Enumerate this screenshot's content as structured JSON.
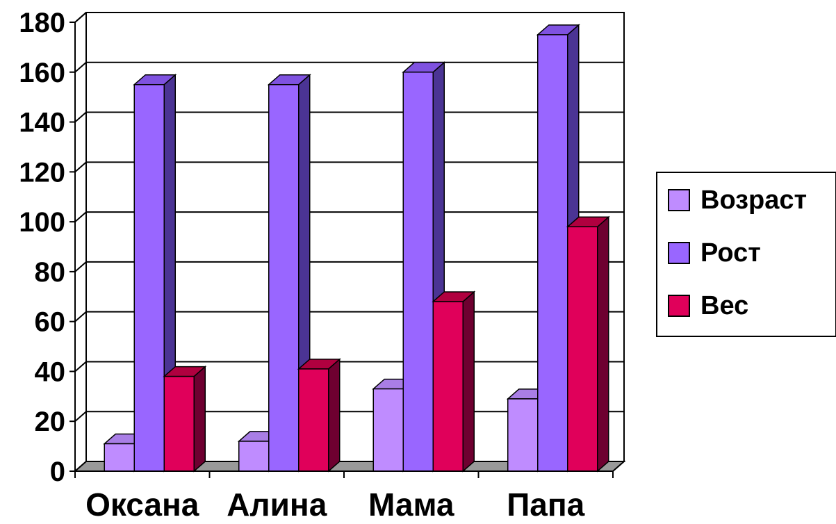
{
  "chart_data": {
    "type": "bar",
    "style": "3d-clustered-column",
    "categories": [
      "Оксана",
      "Алина",
      "Мама",
      "Папа"
    ],
    "series": [
      {
        "name": "Возраст",
        "values": [
          11,
          12,
          33,
          29
        ],
        "color": "#bf8cff",
        "side_color": "#6a4a8f",
        "top_color": "#a97ee6"
      },
      {
        "name": "Рост",
        "values": [
          155,
          155,
          160,
          175
        ],
        "color": "#9966ff",
        "side_color": "#4b3494",
        "top_color": "#7f52e0"
      },
      {
        "name": "Вес",
        "values": [
          38,
          41,
          68,
          98
        ],
        "color": "#e0005a",
        "side_color": "#6e0030",
        "top_color": "#b0003f"
      }
    ],
    "y_ticks": [
      "0",
      "20",
      "40",
      "60",
      "80",
      "100",
      "120",
      "140",
      "160",
      "180"
    ],
    "ylim": [
      0,
      180
    ],
    "grid": true,
    "legend": "right",
    "title": "",
    "xlabel": "",
    "ylabel": ""
  },
  "colors": {
    "floor": "#999999",
    "grid": "#000000"
  }
}
